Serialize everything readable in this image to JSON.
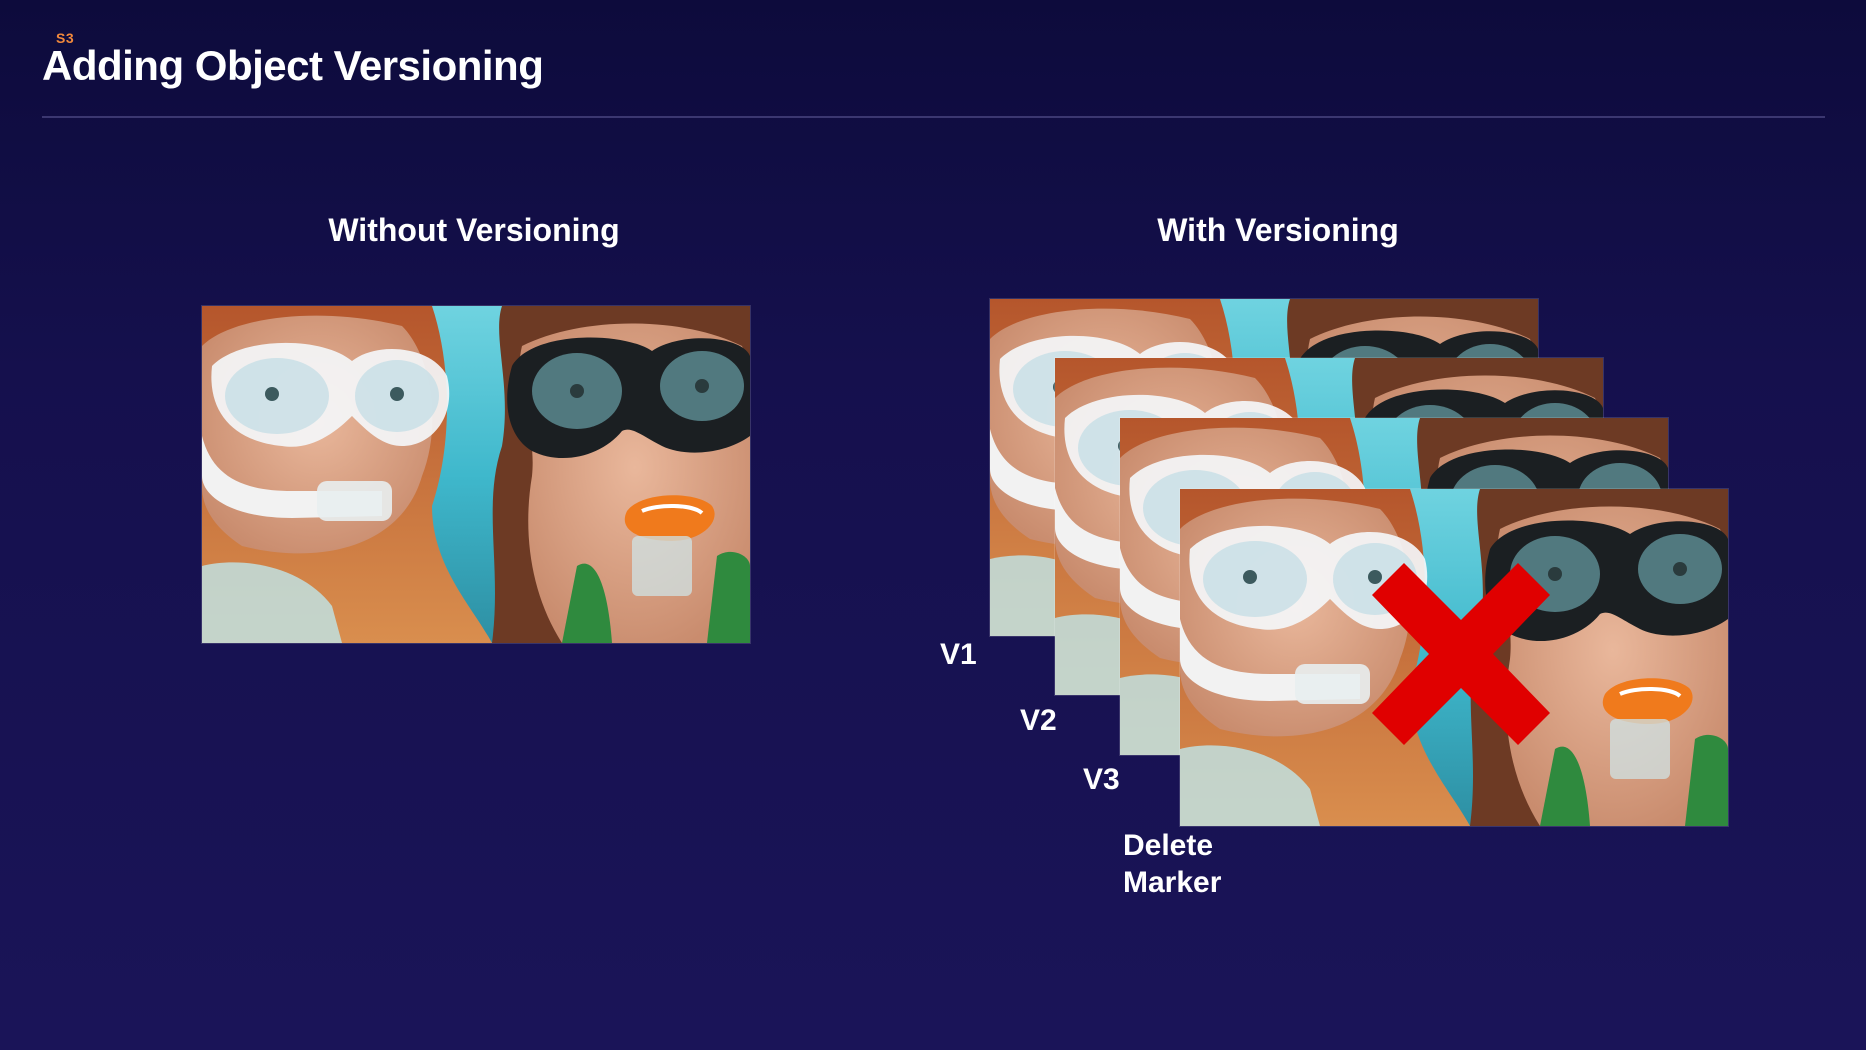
{
  "slide": {
    "tag": "S3",
    "title": "Adding Object Versioning"
  },
  "left_panel": {
    "heading": "Without Versioning"
  },
  "right_panel": {
    "heading": "With Versioning",
    "versions": [
      {
        "label": "V1"
      },
      {
        "label": "V2"
      },
      {
        "label": "V3"
      }
    ],
    "delete_marker": {
      "line1": "Delete",
      "line2": "Marker"
    }
  },
  "colors": {
    "background": "#15104d",
    "accent_tag": "#f0883c",
    "delete_mark": "#e00000",
    "divider": "#3b3770"
  }
}
